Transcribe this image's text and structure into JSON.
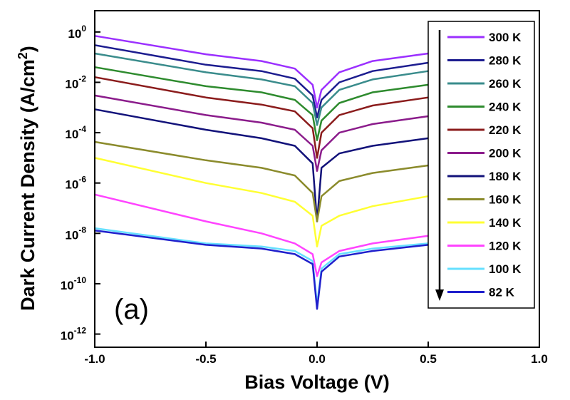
{
  "chart_data": {
    "type": "line",
    "xlabel": "Bias Voltage (V)",
    "ylabel": "Dark Current Density (A/cm",
    "ylabel_sup": "2",
    "ylabel_end": ")",
    "annotation": "(a)",
    "log_y": true,
    "x": [
      -1,
      -0.5,
      -0.25,
      -0.1,
      -0.02,
      0,
      0.02,
      0.1,
      0.25,
      0.5
    ],
    "xlim": [
      -1,
      1
    ],
    "xticks": [
      {
        "value": -1,
        "label": "-1.0"
      },
      {
        "value": -0.5,
        "label": "-0.5"
      },
      {
        "value": 0,
        "label": "0.0"
      },
      0.5,
      {
        "value": 1,
        "label": "1.0"
      }
    ],
    "ylim": [
      3e-13,
      7
    ],
    "yticks": [
      {
        "value": 1,
        "label": "10",
        "exponent": "0"
      },
      {
        "value": 0.01,
        "label": "10",
        "exponent": "-2"
      },
      {
        "value": 0.0001,
        "label": "10",
        "exponent": "-4"
      },
      {
        "value": 1e-06,
        "label": "10",
        "exponent": "-6"
      },
      {
        "value": 1e-08,
        "label": "10",
        "exponent": "-8"
      },
      {
        "value": 1e-10,
        "label": "10",
        "exponent": "-10"
      },
      {
        "value": 1e-12,
        "label": "10",
        "exponent": "-12"
      }
    ],
    "series": [
      {
        "name": "300 K",
        "color": "#9b30ff",
        "values": [
          0.7,
          0.13,
          0.07,
          0.035,
          0.008,
          0.001,
          0.005,
          0.025,
          0.07,
          0.14
        ]
      },
      {
        "name": "280 K",
        "color": "#1c1c8f",
        "values": [
          0.3,
          0.05,
          0.028,
          0.014,
          0.003,
          0.0004,
          0.002,
          0.01,
          0.028,
          0.06
        ]
      },
      {
        "name": "260 K",
        "color": "#3a8c8c",
        "values": [
          0.14,
          0.025,
          0.013,
          0.007,
          0.0015,
          0.0002,
          0.001,
          0.005,
          0.013,
          0.028
        ]
      },
      {
        "name": "240 K",
        "color": "#2e8b2e",
        "values": [
          0.04,
          0.007,
          0.004,
          0.002,
          0.0005,
          5e-05,
          0.0003,
          0.0015,
          0.004,
          0.008
        ]
      },
      {
        "name": "220 K",
        "color": "#8b1c1c",
        "values": [
          0.016,
          0.0025,
          0.0013,
          0.0007,
          0.00015,
          1e-05,
          0.0001,
          0.0005,
          0.0012,
          0.0025
        ]
      },
      {
        "name": "200 K",
        "color": "#8b1c8b",
        "values": [
          0.003,
          0.0005,
          0.00025,
          0.00013,
          3e-05,
          3e-06,
          2e-05,
          0.0001,
          0.00022,
          0.00045
        ]
      },
      {
        "name": "180 K",
        "color": "#12127a",
        "values": [
          0.00085,
          0.00013,
          6e-05,
          3e-05,
          6e-06,
          3e-08,
          4e-06,
          1.5e-05,
          3e-05,
          6e-05
        ]
      },
      {
        "name": "160 K",
        "color": "#8b8b2c",
        "values": [
          4.3e-05,
          8e-06,
          4e-06,
          2e-06,
          4e-07,
          3e-08,
          3e-07,
          1.2e-06,
          2.5e-06,
          5e-06
        ]
      },
      {
        "name": "140 K",
        "color": "#ffff33",
        "values": [
          1e-05,
          1e-06,
          4e-07,
          1.8e-07,
          5e-08,
          3e-09,
          2e-08,
          5e-08,
          1.2e-07,
          3e-07
        ]
      },
      {
        "name": "120 K",
        "color": "#ff44ff",
        "values": [
          3.5e-07,
          3e-08,
          1e-08,
          4e-09,
          1.5e-09,
          2e-10,
          7e-10,
          2e-09,
          4e-09,
          8e-09
        ]
      },
      {
        "name": "100 K",
        "color": "#66e0ff",
        "values": [
          1.6e-08,
          4e-09,
          3e-09,
          2e-09,
          8e-10,
          1.5e-11,
          4e-10,
          1.5e-09,
          2.5e-09,
          4e-09
        ]
      },
      {
        "name": "82 K",
        "color": "#2020cc",
        "values": [
          1.3e-08,
          3.5e-09,
          2.5e-09,
          1.5e-09,
          6e-10,
          1e-11,
          3e-10,
          1.2e-09,
          2e-09,
          3.5e-09
        ]
      }
    ]
  }
}
